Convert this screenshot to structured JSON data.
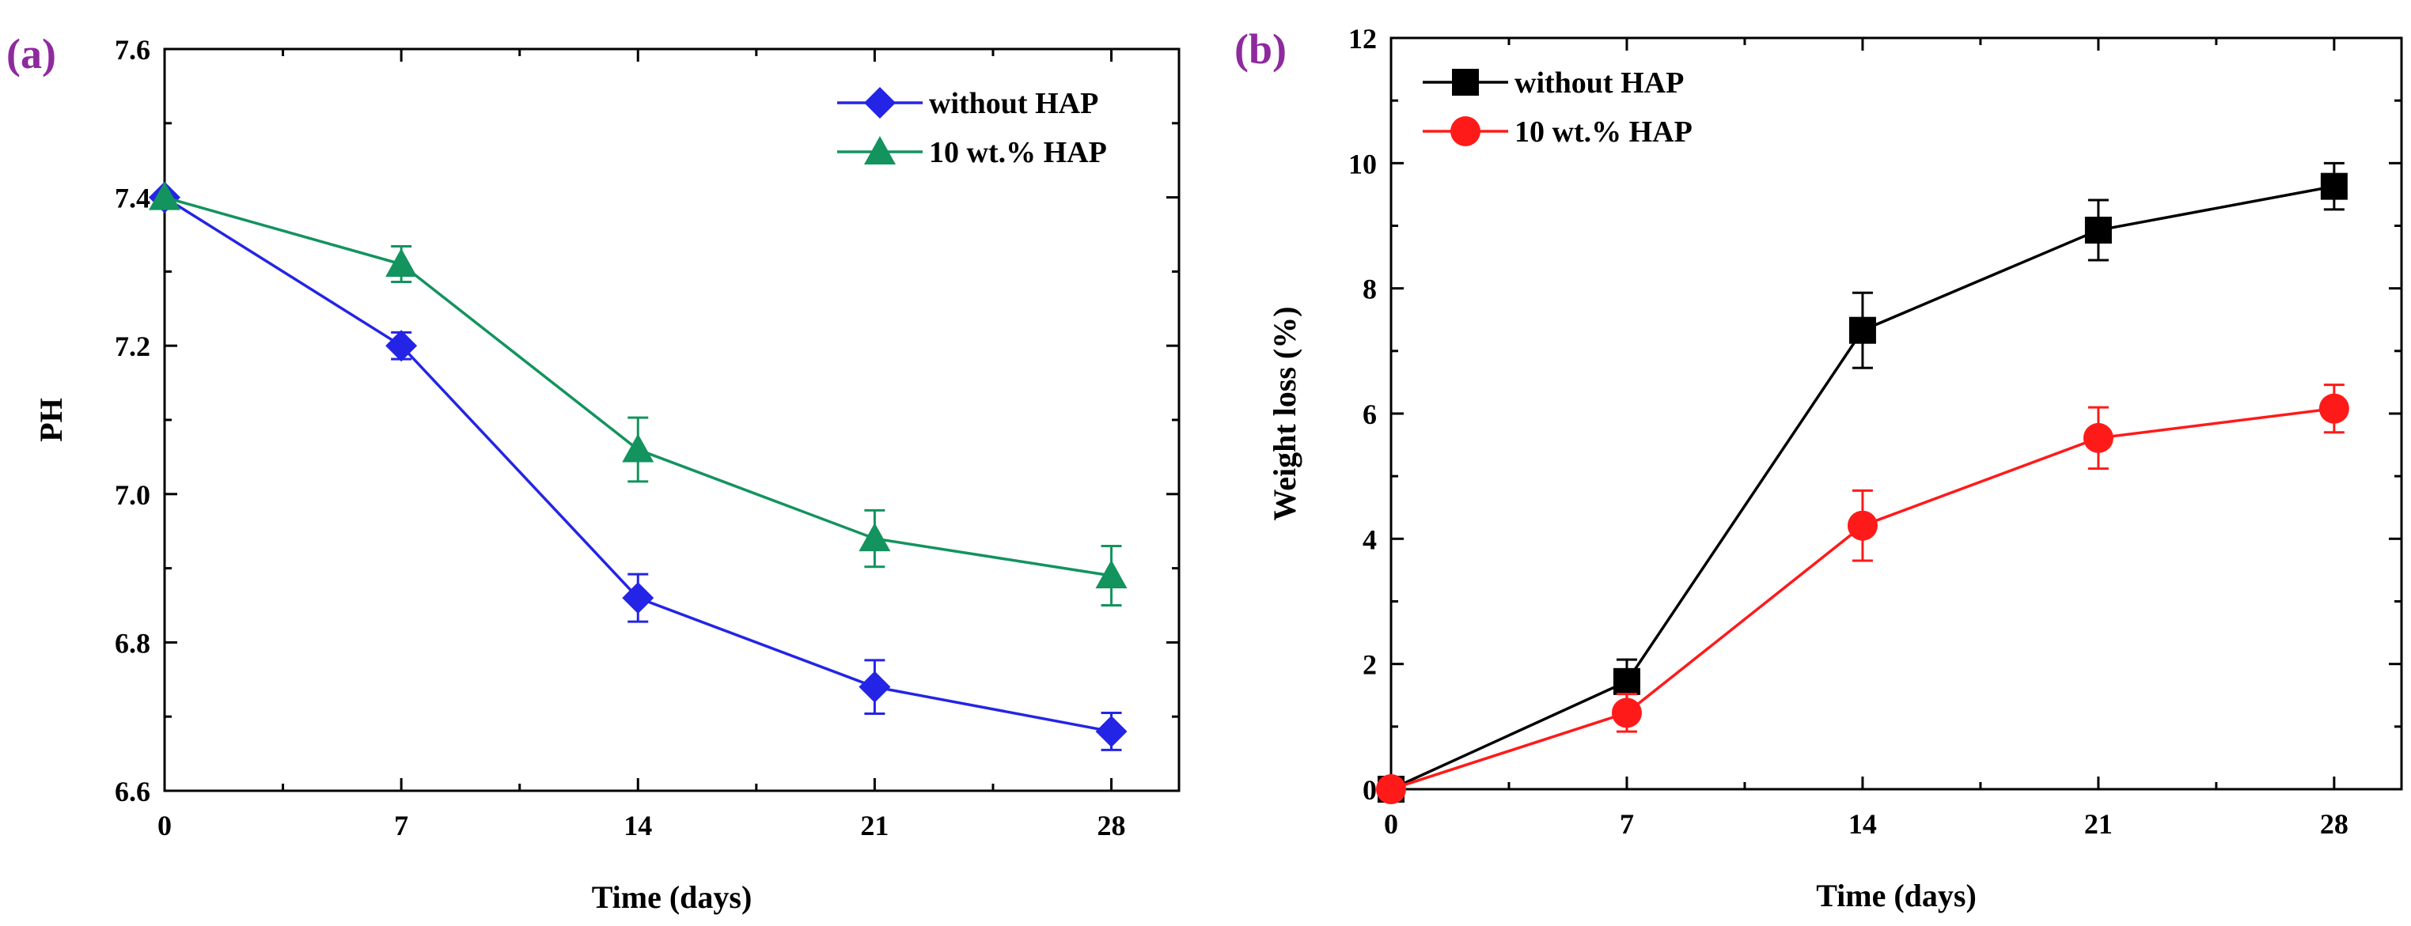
{
  "figure": {
    "panel_letter_color": "#8e2a9e",
    "panels": [
      "(a)",
      "(b)"
    ]
  },
  "chart_data": [
    {
      "type": "line",
      "panel_label": "(a)",
      "title": "",
      "xlabel": "Time (days)",
      "ylabel": "PH",
      "x": [
        0,
        7,
        14,
        21,
        28
      ],
      "xlim": [
        0,
        30
      ],
      "ylim": [
        6.6,
        7.6
      ],
      "x_major_ticks": [
        0,
        7,
        14,
        21,
        28
      ],
      "x_tick_labels": [
        "0",
        "7",
        "14",
        "21",
        "28"
      ],
      "y_major_ticks": [
        6.6,
        6.8,
        7.0,
        7.2,
        7.4,
        7.6
      ],
      "y_tick_labels": [
        "6.6",
        "6.8",
        "7.0",
        "7.2",
        "7.4",
        "7.6"
      ],
      "grid": false,
      "legend_position": "top-right",
      "series": [
        {
          "name": "without HAP",
          "color": "#2424e6",
          "marker": "diamond",
          "values": [
            7.4,
            7.2,
            6.86,
            6.74,
            6.68
          ],
          "errors": [
            0,
            0.018,
            0.032,
            0.036,
            0.025
          ]
        },
        {
          "name": "10 wt.% HAP",
          "color": "#13935e",
          "marker": "triangle",
          "values": [
            7.4,
            7.31,
            7.06,
            6.94,
            6.89
          ],
          "errors": [
            0,
            0.024,
            0.043,
            0.038,
            0.04
          ]
        }
      ]
    },
    {
      "type": "line",
      "panel_label": "(b)",
      "title": "",
      "xlabel": "Time (days)",
      "ylabel": "Weight loss (%)",
      "x": [
        0,
        7,
        14,
        21,
        28
      ],
      "xlim": [
        0,
        30
      ],
      "ylim": [
        0,
        12
      ],
      "x_major_ticks": [
        0,
        7,
        14,
        21,
        28
      ],
      "x_tick_labels": [
        "0",
        "7",
        "14",
        "21",
        "28"
      ],
      "y_major_ticks": [
        0,
        2,
        4,
        6,
        8,
        10,
        12
      ],
      "y_tick_labels": [
        "0",
        "2",
        "4",
        "6",
        "8",
        "10",
        "12"
      ],
      "grid": false,
      "legend_position": "top-left",
      "series": [
        {
          "name": "without HAP",
          "color": "#000000",
          "marker": "square",
          "values": [
            0,
            1.72,
            7.33,
            8.93,
            9.63
          ],
          "errors": [
            0,
            0.35,
            0.6,
            0.48,
            0.37
          ]
        },
        {
          "name": "10 wt.% HAP",
          "color": "#ff1a1a",
          "marker": "circle",
          "values": [
            0,
            1.22,
            4.21,
            5.61,
            6.08
          ],
          "errors": [
            0,
            0.3,
            0.56,
            0.49,
            0.38
          ]
        }
      ]
    }
  ]
}
